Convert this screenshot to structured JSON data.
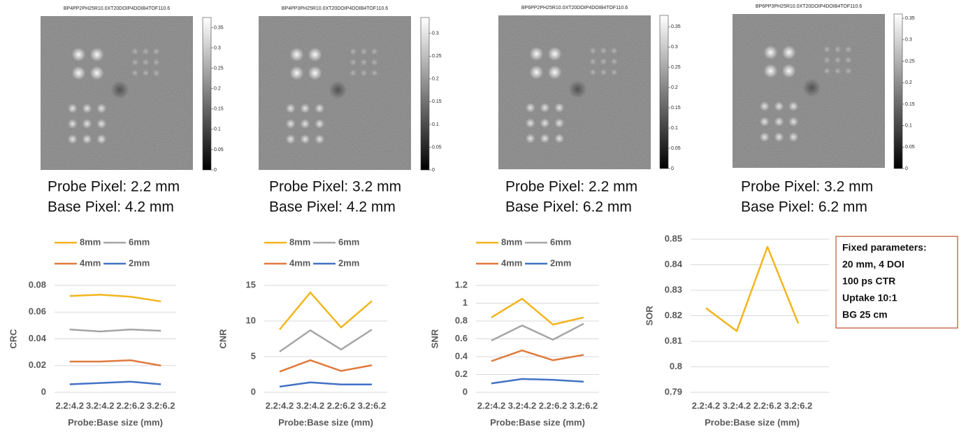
{
  "images": [
    {
      "title": "BP4PP2PH25R10.0XT20DOIP4DOIB4TOF110.6",
      "colorbar": {
        "lim": [
          0,
          0.375
        ],
        "ticks": [
          0,
          0.05,
          0.1,
          0.15,
          0.2,
          0.25,
          0.3,
          0.35
        ]
      },
      "caption": [
        "Probe Pixel: 2.2 mm",
        "Base Pixel: 4.2 mm"
      ]
    },
    {
      "title": "BP4PP3PH25R10.0XT20DOIP4DOIB4TOF110.6",
      "colorbar": {
        "lim": [
          0,
          0.335
        ],
        "ticks": [
          0,
          0.05,
          0.1,
          0.15,
          0.2,
          0.25,
          0.3
        ]
      },
      "caption": [
        "Probe Pixel: 3.2 mm",
        "Base Pixel: 4.2 mm"
      ]
    },
    {
      "title": "BP6PP2PH25R10.0XT20DOIP4DOIB4TOF110.6",
      "colorbar": {
        "lim": [
          0,
          0.378
        ],
        "ticks": [
          0,
          0.05,
          0.1,
          0.15,
          0.2,
          0.25,
          0.3,
          0.35
        ]
      },
      "caption": [
        "Probe Pixel: 2.2 mm",
        "Base Pixel: 6.2 mm"
      ]
    },
    {
      "title": "BP6PP3PH25R10.0XT20DOIP4DOIB4TOF110.6",
      "colorbar": {
        "lim": [
          0,
          0.36
        ],
        "ticks": [
          0,
          0.05,
          0.1,
          0.15,
          0.2,
          0.25,
          0.3,
          0.35
        ]
      },
      "caption": [
        "Probe Pixel: 3.2 mm",
        "Base Pixel: 6.2 mm"
      ]
    }
  ],
  "chart_data": [
    {
      "type": "line",
      "x_label": "Probe:Base size (mm)",
      "y_label": "CRC",
      "categories": [
        "2.2:4.2",
        "3.2:4.2",
        "2.2:6.2",
        "3.2:6.2"
      ],
      "ylim": [
        0,
        0.08
      ],
      "yticks": [
        0,
        0.02,
        0.04,
        0.06,
        0.08
      ],
      "grid": true,
      "series": [
        {
          "name": "8mm",
          "color": "#f2b51d",
          "values": [
            0.072,
            0.073,
            0.0715,
            0.068
          ]
        },
        {
          "name": "6mm",
          "color": "#a5a5a5",
          "values": [
            0.047,
            0.0455,
            0.047,
            0.046
          ]
        },
        {
          "name": "4mm",
          "color": "#e07a3e",
          "values": [
            0.023,
            0.023,
            0.024,
            0.02
          ]
        },
        {
          "name": "2mm",
          "color": "#4472c4",
          "values": [
            0.006,
            0.007,
            0.008,
            0.006
          ]
        }
      ]
    },
    {
      "type": "line",
      "x_label": "Probe:Base size (mm)",
      "y_label": "CNR",
      "categories": [
        "2.2:4.2",
        "3.2:4.2",
        "2.2:6.2",
        "3.2:6.2"
      ],
      "ylim": [
        0,
        15
      ],
      "yticks": [
        0,
        5,
        10,
        15
      ],
      "grid": true,
      "series": [
        {
          "name": "8mm",
          "color": "#f2b51d",
          "values": [
            8.8,
            14,
            9.1,
            12.8
          ]
        },
        {
          "name": "6mm",
          "color": "#a5a5a5",
          "values": [
            5.7,
            8.7,
            6.0,
            8.8
          ]
        },
        {
          "name": "4mm",
          "color": "#e07a3e",
          "values": [
            2.9,
            4.5,
            3.0,
            3.8
          ]
        },
        {
          "name": "2mm",
          "color": "#4472c4",
          "values": [
            0.8,
            1.4,
            1.1,
            1.1
          ]
        }
      ]
    },
    {
      "type": "line",
      "x_label": "Probe:Base size (mm)",
      "y_label": "SNR",
      "categories": [
        "2.2:4.2",
        "3.2:4.2",
        "2.2:6.2",
        "3.2:6.2"
      ],
      "ylim": [
        0,
        1.2
      ],
      "yticks": [
        0,
        0.2,
        0.4,
        0.6,
        0.8,
        1,
        1.2
      ],
      "grid": true,
      "series": [
        {
          "name": "8mm",
          "color": "#f2b51d",
          "values": [
            0.84,
            1.05,
            0.76,
            0.84
          ]
        },
        {
          "name": "6mm",
          "color": "#a5a5a5",
          "values": [
            0.58,
            0.75,
            0.59,
            0.77
          ]
        },
        {
          "name": "4mm",
          "color": "#e07a3e",
          "values": [
            0.35,
            0.47,
            0.36,
            0.42
          ]
        },
        {
          "name": "2mm",
          "color": "#4472c4",
          "values": [
            0.1,
            0.15,
            0.14,
            0.12
          ]
        }
      ]
    },
    {
      "type": "line",
      "x_label": "Probe:Base size (mm)",
      "y_label": "SOR",
      "categories": [
        "2.2:4.2",
        "3.2:4.2",
        "2.2:6.2",
        "3.2:6.2"
      ],
      "ylim": [
        0.79,
        0.85
      ],
      "yticks": [
        0.79,
        0.8,
        0.81,
        0.82,
        0.83,
        0.84,
        0.85
      ],
      "grid": true,
      "series": [
        {
          "color": "#f2b51d",
          "values": [
            0.823,
            0.814,
            0.847,
            0.817
          ]
        }
      ]
    }
  ],
  "note": [
    "Fixed parameters:",
    "20 mm, 4 DOI",
    "100 ps CTR",
    "Uptake 10:1",
    "BG 25 cm"
  ]
}
